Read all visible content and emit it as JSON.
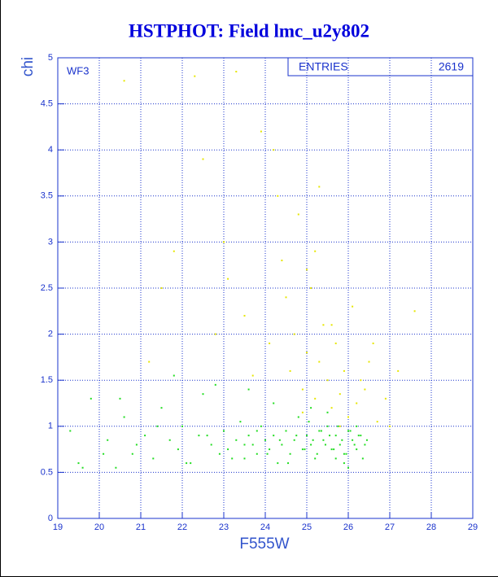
{
  "chart_data": {
    "type": "scatter",
    "title": "HSTPHOT: Field lmc_u2y802",
    "xlabel": "F555W",
    "ylabel": "chi",
    "annotation": "WF3",
    "stats": {
      "label": "ENTRIES",
      "value": 2619
    },
    "xlim": [
      19,
      29
    ],
    "ylim": [
      0,
      5
    ],
    "xticks": [
      19,
      20,
      21,
      22,
      23,
      24,
      25,
      26,
      27,
      28,
      29
    ],
    "yticks": [
      0,
      0.5,
      1,
      1.5,
      2,
      2.5,
      3,
      3.5,
      4,
      4.5,
      5
    ],
    "grid": true,
    "series": [
      {
        "color": "#e6e600",
        "x": [
          20.6,
          21.2,
          21.8,
          22.3,
          22.5,
          23.1,
          23.3,
          23.5,
          23.9,
          24.1,
          24.3,
          24.5,
          24.6,
          24.7,
          24.8,
          24.9,
          25.0,
          25.1,
          25.2,
          25.3,
          25.4,
          25.5,
          25.6,
          25.7,
          25.8,
          25.9,
          26.0,
          26.1,
          26.2,
          26.3,
          26.5,
          26.7,
          26.9,
          27.2,
          27.6,
          22.8,
          23.7,
          24.4,
          25.2,
          25.6,
          24.9,
          25.3,
          25.8,
          26.4,
          23.0,
          21.5,
          24.2,
          25.0,
          26.6,
          27.0
        ],
        "values": [
          4.75,
          1.7,
          2.9,
          4.8,
          3.9,
          2.6,
          4.85,
          2.2,
          4.2,
          1.9,
          3.5,
          2.4,
          1.6,
          2.0,
          3.3,
          1.4,
          1.8,
          2.5,
          1.3,
          1.7,
          2.1,
          1.5,
          1.2,
          1.9,
          1.35,
          1.6,
          1.1,
          2.3,
          1.25,
          1.5,
          1.7,
          1.05,
          1.3,
          1.6,
          2.25,
          2.0,
          1.55,
          2.8,
          2.9,
          2.1,
          1.15,
          3.6,
          1.0,
          1.4,
          3.0,
          2.5,
          4.0,
          2.7,
          1.9,
          1.0
        ]
      },
      {
        "color": "#22dd22",
        "x": [
          19.3,
          19.5,
          19.8,
          20.1,
          20.4,
          20.6,
          20.9,
          21.1,
          21.3,
          21.5,
          21.7,
          21.9,
          22.0,
          22.2,
          22.4,
          22.5,
          22.7,
          22.9,
          23.0,
          23.1,
          23.3,
          23.4,
          23.5,
          23.6,
          23.7,
          23.8,
          23.9,
          24.0,
          24.1,
          24.2,
          24.3,
          24.4,
          24.5,
          24.6,
          24.7,
          24.8,
          24.9,
          25.0,
          25.1,
          25.2,
          25.3,
          25.4,
          25.5,
          25.6,
          25.7,
          25.8,
          25.9,
          26.0,
          26.1,
          26.2,
          26.3,
          26.4,
          19.6,
          20.2,
          20.8,
          21.4,
          22.1,
          22.6,
          23.2,
          23.5,
          23.8,
          24.05,
          24.35,
          24.55,
          24.75,
          24.95,
          25.05,
          25.15,
          25.25,
          25.35,
          25.45,
          25.55,
          25.65,
          25.75,
          25.85,
          25.95,
          26.05,
          26.15,
          26.25,
          26.35,
          26.45,
          25.1,
          25.5,
          25.9,
          26.2,
          24.2,
          23.6,
          22.8,
          21.8,
          20.5,
          26.0,
          25.7
        ],
        "values": [
          0.95,
          0.6,
          1.3,
          0.7,
          0.55,
          1.1,
          0.8,
          0.9,
          0.65,
          1.2,
          0.85,
          0.75,
          1.0,
          0.6,
          0.9,
          1.35,
          0.8,
          0.7,
          0.95,
          0.75,
          0.85,
          1.05,
          0.65,
          0.9,
          0.8,
          0.7,
          1.0,
          0.85,
          0.75,
          0.9,
          0.6,
          0.8,
          0.95,
          0.7,
          0.85,
          1.1,
          0.75,
          0.9,
          0.8,
          0.65,
          0.95,
          0.85,
          1.0,
          0.75,
          0.9,
          0.8,
          0.7,
          0.95,
          0.85,
          0.75,
          0.9,
          0.8,
          0.55,
          0.85,
          0.7,
          1.0,
          0.6,
          0.9,
          0.65,
          0.8,
          0.95,
          0.7,
          0.85,
          0.6,
          0.9,
          0.75,
          1.05,
          0.85,
          0.7,
          0.95,
          0.8,
          0.9,
          0.75,
          1.0,
          0.85,
          0.7,
          0.95,
          0.8,
          0.9,
          0.65,
          0.85,
          1.2,
          1.15,
          0.6,
          1.0,
          1.25,
          1.4,
          1.45,
          1.55,
          1.3,
          0.55,
          0.65
        ]
      }
    ]
  }
}
